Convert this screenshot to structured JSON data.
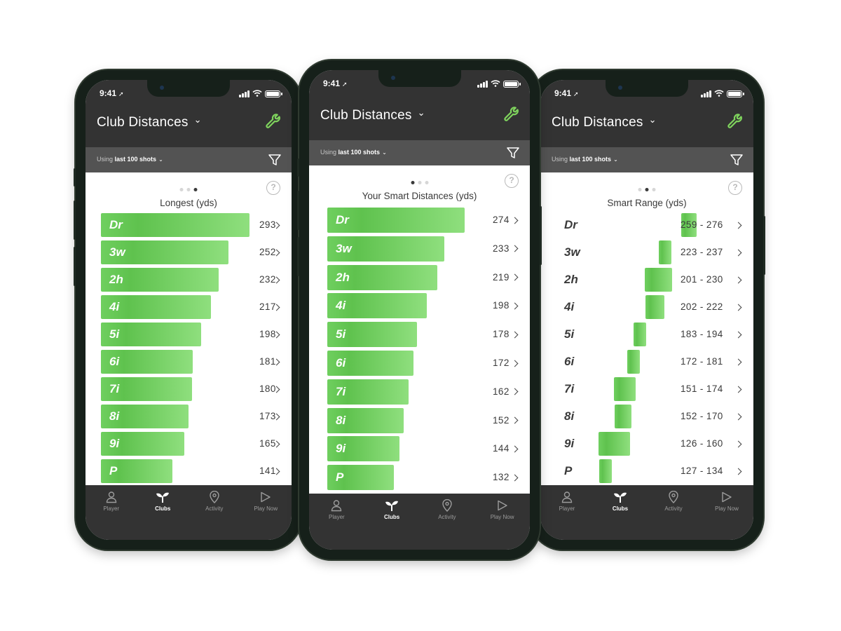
{
  "status": {
    "time": "9:41"
  },
  "header": {
    "title": "Club Distances"
  },
  "filter_bar": {
    "prefix": "Using",
    "selection": "last 100 shots"
  },
  "tabs": [
    "Player",
    "Clubs",
    "Activity",
    "Play Now"
  ],
  "active_tab": "Clubs",
  "colors": {
    "bar": "#6fcf5f",
    "header": "#333333",
    "accent": "#7fd45d"
  },
  "screens": [
    {
      "chart_title": "Longest (yds)",
      "active_dot": 3,
      "clubs": [
        {
          "club": "Dr",
          "value": "293",
          "distance": 293
        },
        {
          "club": "3w",
          "value": "252",
          "distance": 252
        },
        {
          "club": "2h",
          "value": "232",
          "distance": 232
        },
        {
          "club": "4i",
          "value": "217",
          "distance": 217
        },
        {
          "club": "5i",
          "value": "198",
          "distance": 198
        },
        {
          "club": "6i",
          "value": "181",
          "distance": 181
        },
        {
          "club": "7i",
          "value": "180",
          "distance": 180
        },
        {
          "club": "8i",
          "value": "173",
          "distance": 173
        },
        {
          "club": "9i",
          "value": "165",
          "distance": 165
        },
        {
          "club": "P",
          "value": "141",
          "distance": 141
        }
      ]
    },
    {
      "chart_title": "Your Smart Distances (yds)",
      "active_dot": 1,
      "clubs": [
        {
          "club": "Dr",
          "value": "274",
          "distance": 274
        },
        {
          "club": "3w",
          "value": "233",
          "distance": 233
        },
        {
          "club": "2h",
          "value": "219",
          "distance": 219
        },
        {
          "club": "4i",
          "value": "198",
          "distance": 198
        },
        {
          "club": "5i",
          "value": "178",
          "distance": 178
        },
        {
          "club": "6i",
          "value": "172",
          "distance": 172
        },
        {
          "club": "7i",
          "value": "162",
          "distance": 162
        },
        {
          "club": "8i",
          "value": "152",
          "distance": 152
        },
        {
          "club": "9i",
          "value": "144",
          "distance": 144
        },
        {
          "club": "P",
          "value": "132",
          "distance": 132
        }
      ]
    },
    {
      "chart_title": "Smart Range (yds)",
      "active_dot": 2,
      "clubs": [
        {
          "club": "Dr",
          "value": "259 - 276",
          "min": 259,
          "max": 276
        },
        {
          "club": "3w",
          "value": "223 - 237",
          "min": 223,
          "max": 237
        },
        {
          "club": "2h",
          "value": "201 - 230",
          "min": 201,
          "max": 230
        },
        {
          "club": "4i",
          "value": "202 - 222",
          "min": 202,
          "max": 222
        },
        {
          "club": "5i",
          "value": "183 - 194",
          "min": 183,
          "max": 194
        },
        {
          "club": "6i",
          "value": "172 - 181",
          "min": 172,
          "max": 181
        },
        {
          "club": "7i",
          "value": "151 - 174",
          "min": 151,
          "max": 174
        },
        {
          "club": "8i",
          "value": "152 - 170",
          "min": 152,
          "max": 170
        },
        {
          "club": "9i",
          "value": "126 - 160",
          "min": 126,
          "max": 160
        },
        {
          "club": "P",
          "value": "127 - 134",
          "min": 127,
          "max": 134
        }
      ]
    }
  ]
}
